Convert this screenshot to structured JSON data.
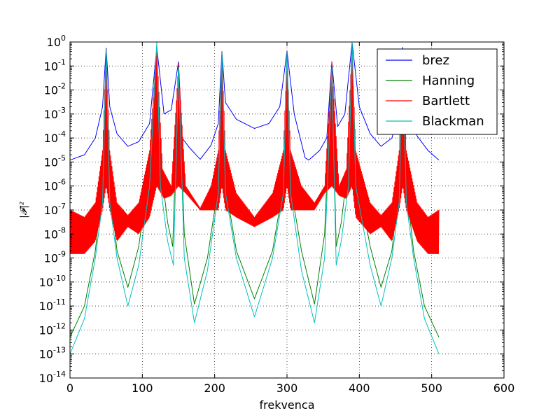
{
  "chart_data": {
    "type": "line",
    "xlabel": "frekvenca",
    "ylabel": "|𝓕|²",
    "xlim": [
      0,
      600
    ],
    "ylim_log10": [
      -14,
      0
    ],
    "yscale": "log",
    "x_ticks": [
      "0",
      "100",
      "200",
      "300",
      "400",
      "500",
      "600"
    ],
    "y_tick_base": "10",
    "y_tick_exponents": [
      "0",
      "-1",
      "-2",
      "-3",
      "-4",
      "-5",
      "-6",
      "-7",
      "-8",
      "-9",
      "-10",
      "-11",
      "-12",
      "-13",
      "-14"
    ],
    "grid": true,
    "legend_position": "top-right",
    "peak_frequencies": [
      50,
      120,
      150,
      210,
      300,
      362,
      390,
      460
    ],
    "series": [
      {
        "name": "brez",
        "color": "#0000ff",
        "points": [
          [
            0,
            1.2e-05
          ],
          [
            20,
            2e-05
          ],
          [
            35,
            0.0001
          ],
          [
            45,
            0.002
          ],
          [
            50,
            0.55
          ],
          [
            55,
            0.002
          ],
          [
            65,
            0.00015
          ],
          [
            80,
            4.5e-05
          ],
          [
            95,
            7e-05
          ],
          [
            110,
            0.0004
          ],
          [
            120,
            0.6
          ],
          [
            130,
            0.001
          ],
          [
            140,
            0.0015
          ],
          [
            150,
            0.15
          ],
          [
            155,
            0.0001
          ],
          [
            165,
            4e-05
          ],
          [
            180,
            1.3e-05
          ],
          [
            195,
            5e-05
          ],
          [
            205,
            0.0004
          ],
          [
            210,
            0.4
          ],
          [
            215,
            0.003
          ],
          [
            230,
            0.0006
          ],
          [
            255,
            0.00025
          ],
          [
            275,
            0.0004
          ],
          [
            290,
            0.002
          ],
          [
            300,
            0.42
          ],
          [
            310,
            0.001
          ],
          [
            325,
            1.5e-05
          ],
          [
            330,
            1.2e-05
          ],
          [
            345,
            3e-05
          ],
          [
            355,
            0.0001
          ],
          [
            362,
            0.15
          ],
          [
            370,
            0.0003
          ],
          [
            380,
            0.001
          ],
          [
            390,
            0.95
          ],
          [
            400,
            0.002
          ],
          [
            415,
            0.00015
          ],
          [
            430,
            4.5e-05
          ],
          [
            445,
            0.0001
          ],
          [
            455,
            0.001
          ],
          [
            460,
            0.6
          ],
          [
            465,
            0.001
          ],
          [
            480,
            0.00012
          ],
          [
            495,
            3e-05
          ],
          [
            510,
            1.2e-05
          ]
        ]
      },
      {
        "name": "Hanning",
        "color": "#008000",
        "points": [
          [
            0,
            5e-13
          ],
          [
            20,
            1e-11
          ],
          [
            35,
            2e-09
          ],
          [
            45,
            1e-06
          ],
          [
            50,
            0.5
          ],
          [
            55,
            1e-06
          ],
          [
            65,
            2e-09
          ],
          [
            80,
            6e-11
          ],
          [
            95,
            3e-09
          ],
          [
            110,
            5e-06
          ],
          [
            120,
            0.7
          ],
          [
            125,
            1e-05
          ],
          [
            135,
            3e-08
          ],
          [
            142,
            3e-09
          ],
          [
            150,
            0.1
          ],
          [
            158,
            1e-08
          ],
          [
            172,
            1.2e-11
          ],
          [
            190,
            1e-09
          ],
          [
            205,
            1e-06
          ],
          [
            210,
            0.4
          ],
          [
            215,
            1e-06
          ],
          [
            230,
            2e-09
          ],
          [
            255,
            2e-11
          ],
          [
            280,
            2e-09
          ],
          [
            295,
            1e-06
          ],
          [
            300,
            0.4
          ],
          [
            305,
            1e-06
          ],
          [
            320,
            2e-09
          ],
          [
            338,
            1.2e-11
          ],
          [
            352,
            1e-08
          ],
          [
            362,
            0.15
          ],
          [
            368,
            3e-09
          ],
          [
            375,
            3e-08
          ],
          [
            385,
            1e-05
          ],
          [
            390,
            0.9
          ],
          [
            395,
            5e-06
          ],
          [
            415,
            3e-09
          ],
          [
            430,
            6e-11
          ],
          [
            445,
            2e-09
          ],
          [
            455,
            1e-06
          ],
          [
            460,
            0.5
          ],
          [
            465,
            1e-06
          ],
          [
            475,
            2e-09
          ],
          [
            490,
            1e-11
          ],
          [
            510,
            5e-13
          ]
        ]
      },
      {
        "name": "Bartlett",
        "color": "#ff0000",
        "points": [
          [
            0,
            1e-07
          ],
          [
            20,
            5e-08
          ],
          [
            35,
            2e-07
          ],
          [
            45,
            3e-05
          ],
          [
            50,
            0.5
          ],
          [
            55,
            3e-05
          ],
          [
            65,
            2e-07
          ],
          [
            80,
            6e-08
          ],
          [
            95,
            2e-07
          ],
          [
            110,
            3e-05
          ],
          [
            120,
            0.7
          ],
          [
            128,
            5e-06
          ],
          [
            140,
            1e-06
          ],
          [
            150,
            0.12
          ],
          [
            160,
            1e-06
          ],
          [
            180,
            1.2e-07
          ],
          [
            195,
            1e-06
          ],
          [
            205,
            3e-05
          ],
          [
            210,
            0.4
          ],
          [
            215,
            3e-05
          ],
          [
            230,
            5e-07
          ],
          [
            255,
            5e-08
          ],
          [
            280,
            5e-07
          ],
          [
            295,
            3e-05
          ],
          [
            300,
            0.4
          ],
          [
            305,
            3e-05
          ],
          [
            320,
            1e-06
          ],
          [
            338,
            2e-07
          ],
          [
            352,
            1e-06
          ],
          [
            362,
            0.15
          ],
          [
            372,
            1e-06
          ],
          [
            382,
            5e-06
          ],
          [
            390,
            0.9
          ],
          [
            395,
            3e-05
          ],
          [
            415,
            2e-07
          ],
          [
            430,
            6e-08
          ],
          [
            445,
            2e-07
          ],
          [
            455,
            3e-05
          ],
          [
            460,
            0.5
          ],
          [
            465,
            3e-05
          ],
          [
            480,
            2e-07
          ],
          [
            495,
            5e-08
          ],
          [
            510,
            1e-07
          ]
        ],
        "oscillation_floor": [
          [
            0,
            1.5e-09
          ],
          [
            20,
            1.5e-09
          ],
          [
            35,
            5e-09
          ],
          [
            45,
            1e-07
          ],
          [
            50,
            1e-06
          ],
          [
            55,
            1e-07
          ],
          [
            65,
            5e-09
          ],
          [
            80,
            2e-08
          ],
          [
            95,
            1e-08
          ],
          [
            110,
            5e-08
          ],
          [
            120,
            1e-06
          ],
          [
            130,
            3e-07
          ],
          [
            140,
            4e-07
          ],
          [
            150,
            1e-06
          ],
          [
            160,
            5e-07
          ],
          [
            180,
            1e-07
          ],
          [
            195,
            1e-07
          ],
          [
            205,
            1e-07
          ],
          [
            210,
            1e-06
          ],
          [
            215,
            1e-07
          ],
          [
            230,
            5e-08
          ],
          [
            255,
            2e-08
          ],
          [
            280,
            5e-08
          ],
          [
            295,
            1e-07
          ],
          [
            300,
            1e-06
          ],
          [
            305,
            1e-07
          ],
          [
            320,
            1e-07
          ],
          [
            338,
            1e-07
          ],
          [
            352,
            5e-07
          ],
          [
            362,
            1e-06
          ],
          [
            372,
            4e-07
          ],
          [
            382,
            3e-07
          ],
          [
            390,
            1e-06
          ],
          [
            395,
            5e-08
          ],
          [
            415,
            1e-08
          ],
          [
            430,
            2e-08
          ],
          [
            445,
            5e-09
          ],
          [
            455,
            1e-07
          ],
          [
            460,
            1e-06
          ],
          [
            465,
            1e-07
          ],
          [
            480,
            5e-09
          ],
          [
            495,
            1.5e-09
          ],
          [
            510,
            1.5e-09
          ]
        ]
      },
      {
        "name": "Blackman",
        "color": "#00bfbf",
        "points": [
          [
            0,
            1e-13
          ],
          [
            20,
            3e-12
          ],
          [
            35,
            1e-09
          ],
          [
            45,
            2e-07
          ],
          [
            50,
            0.45
          ],
          [
            55,
            2e-07
          ],
          [
            65,
            1e-09
          ],
          [
            80,
            1e-11
          ],
          [
            95,
            5e-10
          ],
          [
            110,
            1e-06
          ],
          [
            120,
            1.0
          ],
          [
            125,
            1e-06
          ],
          [
            135,
            5e-09
          ],
          [
            143,
            5e-10
          ],
          [
            150,
            0.08
          ],
          [
            158,
            1e-09
          ],
          [
            172,
            2e-12
          ],
          [
            190,
            3e-10
          ],
          [
            205,
            5e-07
          ],
          [
            210,
            0.35
          ],
          [
            215,
            5e-07
          ],
          [
            230,
            1e-09
          ],
          [
            255,
            3.5e-12
          ],
          [
            280,
            1e-09
          ],
          [
            295,
            5e-07
          ],
          [
            300,
            0.35
          ],
          [
            305,
            5e-07
          ],
          [
            320,
            3e-10
          ],
          [
            338,
            2e-12
          ],
          [
            352,
            1e-09
          ],
          [
            362,
            0.08
          ],
          [
            368,
            5e-10
          ],
          [
            375,
            5e-09
          ],
          [
            385,
            1e-06
          ],
          [
            390,
            1.0
          ],
          [
            395,
            1e-06
          ],
          [
            415,
            5e-10
          ],
          [
            430,
            1e-11
          ],
          [
            445,
            1e-09
          ],
          [
            455,
            2e-07
          ],
          [
            460,
            0.45
          ],
          [
            465,
            2e-07
          ],
          [
            475,
            1e-09
          ],
          [
            490,
            3e-12
          ],
          [
            510,
            1e-13
          ]
        ]
      }
    ]
  }
}
